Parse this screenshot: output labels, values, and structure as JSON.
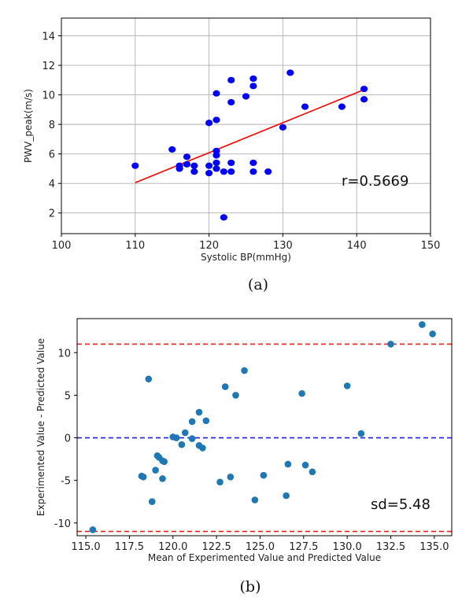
{
  "chart_data": [
    {
      "type": "scatter",
      "xlabel": "Systolic BP(mmHg)",
      "ylabel": "PWV_peak(m/s)",
      "xlim": [
        100,
        150
      ],
      "ylim": [
        0.6,
        15.2
      ],
      "xticks": [
        100,
        110,
        120,
        130,
        140,
        150
      ],
      "yticks": [
        2,
        4,
        6,
        8,
        10,
        12,
        14
      ],
      "grid": true,
      "point_color": "#0000ff",
      "annotation": "r=0.5669",
      "caption": "(a)",
      "points": [
        [
          110,
          5.2
        ],
        [
          115,
          6.3
        ],
        [
          116,
          5.0
        ],
        [
          116,
          5.2
        ],
        [
          117,
          5.3
        ],
        [
          117,
          5.8
        ],
        [
          118,
          4.8
        ],
        [
          118,
          5.2
        ],
        [
          120,
          4.7
        ],
        [
          120,
          5.2
        ],
        [
          120,
          8.1
        ],
        [
          121,
          5.0
        ],
        [
          121,
          5.4
        ],
        [
          121,
          5.9
        ],
        [
          121,
          6.2
        ],
        [
          121,
          8.3
        ],
        [
          121,
          10.1
        ],
        [
          122,
          1.7
        ],
        [
          122,
          4.8
        ],
        [
          123,
          4.8
        ],
        [
          123,
          5.4
        ],
        [
          123,
          9.5
        ],
        [
          123,
          11.0
        ],
        [
          125,
          9.9
        ],
        [
          126,
          4.8
        ],
        [
          126,
          5.4
        ],
        [
          126,
          10.6
        ],
        [
          126,
          11.1
        ],
        [
          128,
          4.8
        ],
        [
          130,
          7.8
        ],
        [
          131,
          11.5
        ],
        [
          133,
          9.2
        ],
        [
          138,
          9.2
        ],
        [
          141,
          9.7
        ],
        [
          141,
          10.4
        ]
      ],
      "fit_line": {
        "x": [
          110,
          141
        ],
        "y": [
          4.05,
          10.35
        ],
        "color": "#ff0000"
      }
    },
    {
      "type": "scatter",
      "xlabel": "Mean of Experimented Value and Predicted Value",
      "ylabel": "Experimented Value - Predicted Value",
      "xlim": [
        114.5,
        136.0
      ],
      "ylim": [
        -11.5,
        14.0
      ],
      "xticks": [
        115.0,
        117.5,
        120.0,
        122.5,
        125.0,
        127.5,
        130.0,
        132.5,
        135.0
      ],
      "xtick_labels": [
        "115.0",
        "117.5",
        "120.0",
        "122.5",
        "125.0",
        "127.5",
        "130.0",
        "132.5",
        "135.0"
      ],
      "yticks": [
        -10,
        -5,
        0,
        5,
        10
      ],
      "grid": false,
      "point_color": "#1f77b4",
      "annotation": "sd=5.48",
      "caption": "(b)",
      "hlines": [
        {
          "y": 11.0,
          "color": "#e8221b",
          "style": "dashed"
        },
        {
          "y": 0.0,
          "color": "#2020e0",
          "style": "dashed"
        },
        {
          "y": -11.0,
          "color": "#e8221b",
          "style": "dashed"
        }
      ],
      "points": [
        [
          115.4,
          -10.8
        ],
        [
          118.2,
          -4.5
        ],
        [
          118.3,
          -4.6
        ],
        [
          118.6,
          6.9
        ],
        [
          118.8,
          -7.5
        ],
        [
          119.0,
          -3.8
        ],
        [
          119.1,
          -2.1
        ],
        [
          119.2,
          -2.3
        ],
        [
          119.4,
          -2.7
        ],
        [
          119.4,
          -4.8
        ],
        [
          119.5,
          -2.8
        ],
        [
          120.0,
          0.1
        ],
        [
          120.2,
          0.0
        ],
        [
          120.5,
          -0.8
        ],
        [
          120.7,
          0.6
        ],
        [
          121.1,
          -0.1
        ],
        [
          121.1,
          1.9
        ],
        [
          121.5,
          -0.9
        ],
        [
          121.5,
          3.0
        ],
        [
          121.7,
          -1.2
        ],
        [
          121.9,
          2.0
        ],
        [
          122.7,
          -5.2
        ],
        [
          123.0,
          6.0
        ],
        [
          123.3,
          -4.6
        ],
        [
          123.6,
          5.0
        ],
        [
          124.1,
          7.9
        ],
        [
          124.7,
          -7.3
        ],
        [
          125.2,
          -4.4
        ],
        [
          126.5,
          -6.8
        ],
        [
          126.6,
          -3.1
        ],
        [
          127.4,
          5.2
        ],
        [
          127.6,
          -3.2
        ],
        [
          128.0,
          -4.0
        ],
        [
          130.0,
          6.1
        ],
        [
          130.8,
          0.5
        ],
        [
          132.5,
          11.0
        ],
        [
          134.3,
          13.3
        ],
        [
          134.9,
          12.2
        ]
      ]
    }
  ]
}
